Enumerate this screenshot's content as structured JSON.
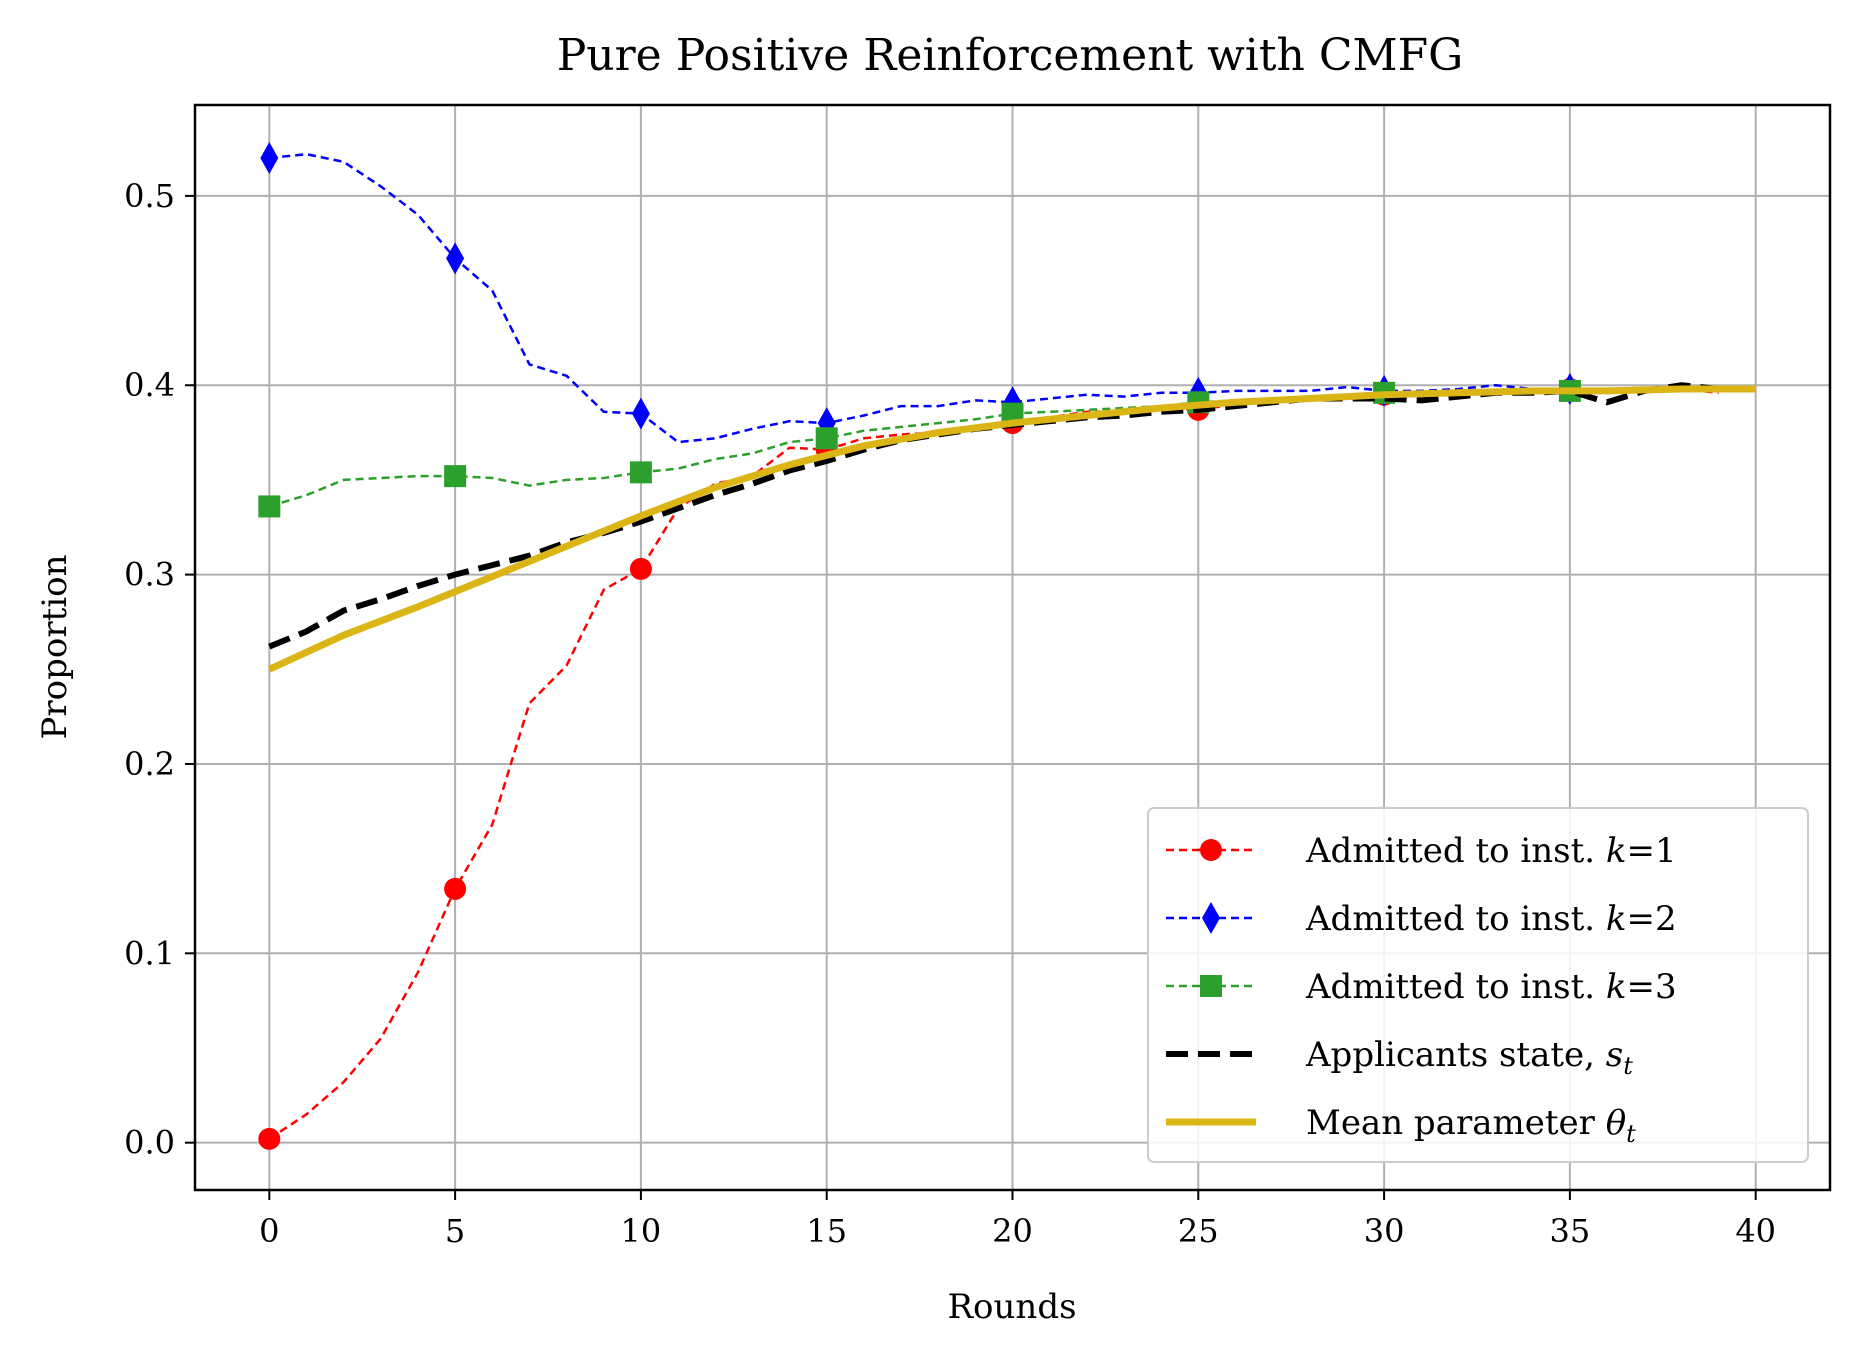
{
  "chart_data": {
    "type": "line",
    "title": "Pure Positive Reinforcement with CMFG",
    "xlabel": "Rounds",
    "ylabel": "Proportion",
    "xlim": [
      -2,
      42
    ],
    "ylim": [
      -0.025,
      0.548
    ],
    "xticks": [
      0,
      5,
      10,
      15,
      20,
      25,
      30,
      35,
      40
    ],
    "yticks": [
      0.0,
      0.1,
      0.2,
      0.3,
      0.4,
      0.5
    ],
    "xtick_labels": [
      "0",
      "5",
      "10",
      "15",
      "20",
      "25",
      "30",
      "35",
      "40"
    ],
    "ytick_labels": [
      "0.0",
      "0.1",
      "0.2",
      "0.3",
      "0.4",
      "0.5"
    ],
    "grid": true,
    "legend_position": "lower-right",
    "series": [
      {
        "name": "Admitted to inst. k=1",
        "color": "#ff0000",
        "style": "dashed",
        "marker": "circle",
        "marker_every": 5,
        "x": [
          0,
          1,
          2,
          3,
          4,
          5,
          6,
          7,
          8,
          9,
          10,
          11,
          12,
          13,
          14,
          15,
          16,
          17,
          18,
          19,
          20,
          21,
          22,
          23,
          24,
          25,
          26,
          27,
          28,
          29,
          30,
          31,
          32,
          33,
          34,
          35,
          36,
          37,
          38,
          39
        ],
        "values": [
          0.002,
          0.015,
          0.032,
          0.055,
          0.09,
          0.134,
          0.168,
          0.232,
          0.252,
          0.292,
          0.303,
          0.335,
          0.348,
          0.352,
          0.367,
          0.366,
          0.372,
          0.374,
          0.375,
          0.378,
          0.38,
          0.383,
          0.386,
          0.386,
          0.388,
          0.387,
          0.39,
          0.392,
          0.393,
          0.395,
          0.395,
          0.396,
          0.396,
          0.397,
          0.397,
          0.398,
          0.396,
          0.398,
          0.398,
          0.396
        ]
      },
      {
        "name": "Admitted to inst. k=2",
        "color": "#0000ff",
        "style": "dashed",
        "marker": "diamond",
        "marker_every": 5,
        "x": [
          0,
          1,
          2,
          3,
          4,
          5,
          6,
          7,
          8,
          9,
          10,
          11,
          12,
          13,
          14,
          15,
          16,
          17,
          18,
          19,
          20,
          21,
          22,
          23,
          24,
          25,
          26,
          27,
          28,
          29,
          30,
          31,
          32,
          33,
          34,
          35,
          36,
          37,
          38,
          39
        ],
        "values": [
          0.52,
          0.522,
          0.518,
          0.505,
          0.49,
          0.467,
          0.45,
          0.411,
          0.405,
          0.386,
          0.385,
          0.37,
          0.372,
          0.377,
          0.381,
          0.38,
          0.384,
          0.389,
          0.389,
          0.392,
          0.391,
          0.393,
          0.395,
          0.394,
          0.396,
          0.396,
          0.397,
          0.397,
          0.397,
          0.399,
          0.397,
          0.397,
          0.398,
          0.4,
          0.398,
          0.398,
          0.398,
          0.398,
          0.399,
          0.398
        ]
      },
      {
        "name": "Admitted to inst. k=3",
        "color": "#2ca02c",
        "style": "dashed",
        "marker": "square",
        "marker_every": 5,
        "x": [
          0,
          1,
          2,
          3,
          4,
          5,
          6,
          7,
          8,
          9,
          10,
          11,
          12,
          13,
          14,
          15,
          16,
          17,
          18,
          19,
          20,
          21,
          22,
          23,
          24,
          25,
          26,
          27,
          28,
          29,
          30,
          31,
          32,
          33,
          34,
          35,
          36,
          37,
          38,
          39
        ],
        "values": [
          0.336,
          0.342,
          0.35,
          0.351,
          0.352,
          0.352,
          0.351,
          0.347,
          0.35,
          0.351,
          0.354,
          0.356,
          0.361,
          0.364,
          0.37,
          0.372,
          0.376,
          0.378,
          0.38,
          0.382,
          0.385,
          0.386,
          0.387,
          0.388,
          0.389,
          0.391,
          0.392,
          0.393,
          0.394,
          0.395,
          0.396,
          0.396,
          0.397,
          0.397,
          0.397,
          0.397,
          0.397,
          0.397,
          0.398,
          0.398
        ]
      },
      {
        "name": "Applicants state, s_t",
        "color": "#000000",
        "style": "dashed-thick",
        "marker": "none",
        "x": [
          0,
          1,
          2,
          3,
          4,
          5,
          6,
          7,
          8,
          9,
          10,
          11,
          12,
          13,
          14,
          15,
          16,
          17,
          18,
          19,
          20,
          21,
          22,
          23,
          24,
          25,
          26,
          27,
          28,
          29,
          30,
          31,
          32,
          33,
          34,
          35,
          36,
          37,
          38,
          39
        ],
        "values": [
          0.262,
          0.27,
          0.281,
          0.287,
          0.294,
          0.3,
          0.305,
          0.31,
          0.317,
          0.322,
          0.328,
          0.335,
          0.342,
          0.348,
          0.355,
          0.36,
          0.366,
          0.371,
          0.374,
          0.377,
          0.379,
          0.381,
          0.383,
          0.384,
          0.386,
          0.387,
          0.389,
          0.391,
          0.393,
          0.393,
          0.393,
          0.392,
          0.394,
          0.396,
          0.396,
          0.397,
          0.391,
          0.397,
          0.4,
          0.398
        ]
      },
      {
        "name": "Mean parameter θ_t",
        "color": "#dbb416",
        "style": "solid-thick",
        "marker": "none",
        "x": [
          0,
          2,
          4,
          6,
          8,
          10,
          12,
          14,
          16,
          18,
          20,
          22,
          24,
          26,
          28,
          30,
          32,
          34,
          36,
          38,
          40
        ],
        "values": [
          0.25,
          0.268,
          0.283,
          0.299,
          0.315,
          0.331,
          0.346,
          0.358,
          0.368,
          0.375,
          0.38,
          0.384,
          0.388,
          0.391,
          0.393,
          0.395,
          0.396,
          0.397,
          0.397,
          0.398,
          0.398
        ]
      }
    ],
    "legend": [
      {
        "prefix": "Admitted to inst. ",
        "math": "k",
        "suffix": "=1",
        "series_index": 0
      },
      {
        "prefix": "Admitted to inst. ",
        "math": "k",
        "suffix": "=2",
        "series_index": 1
      },
      {
        "prefix": "Admitted to inst. ",
        "math": "k",
        "suffix": "=3",
        "series_index": 2
      },
      {
        "prefix": "Applicants state, ",
        "math": "s",
        "sub": "t",
        "series_index": 3
      },
      {
        "prefix": "Mean parameter ",
        "math": "θ",
        "sub": "t",
        "series_index": 4
      }
    ]
  }
}
